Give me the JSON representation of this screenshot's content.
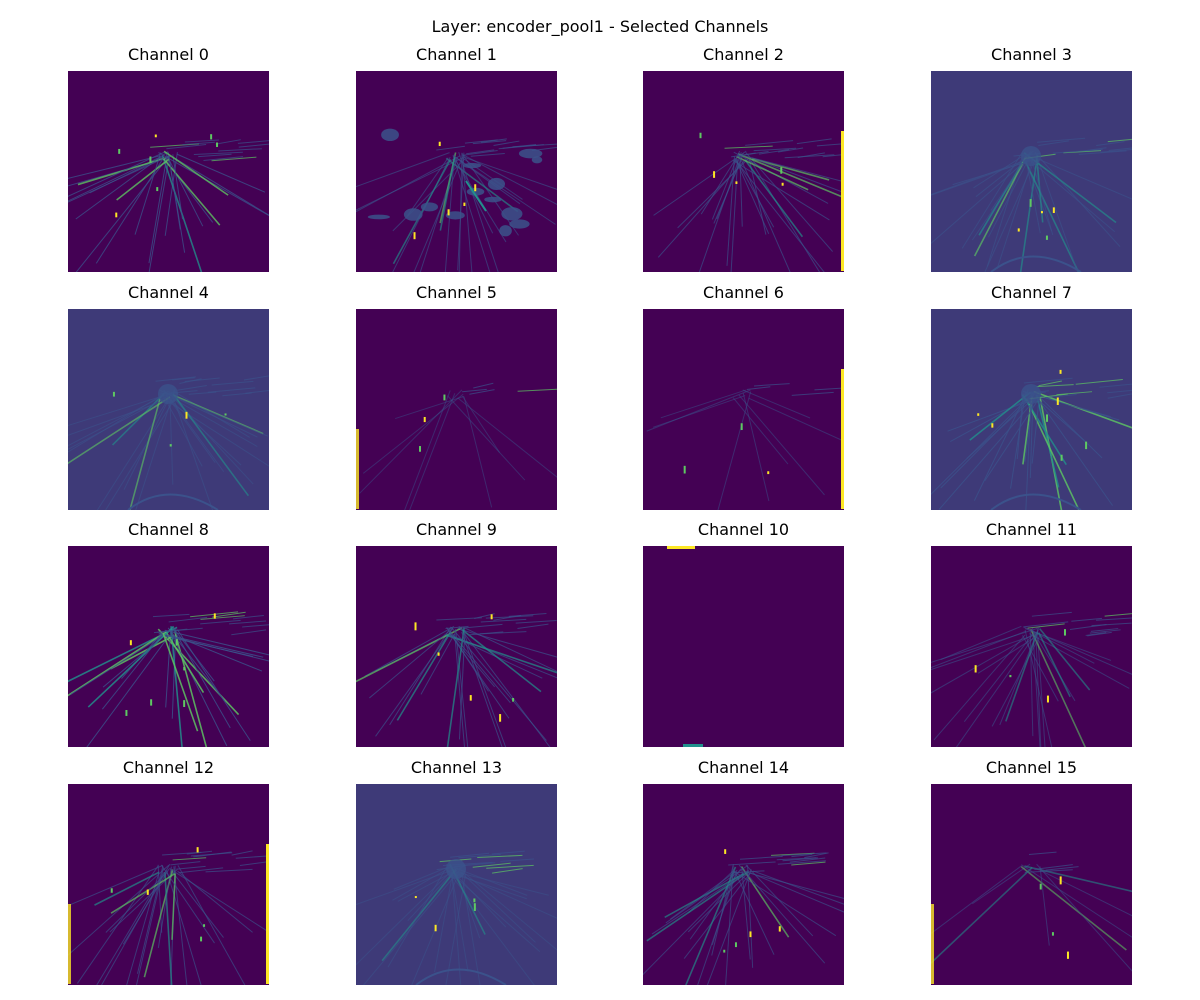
{
  "figure": {
    "suptitle": "Layer: encoder_pool1 - Selected Channels",
    "colormap": "viridis",
    "colors": {
      "background": "#440154",
      "mid_dark": "#3b528b",
      "mid": "#21918c",
      "bright": "#5ec962",
      "peak": "#fde725"
    },
    "panels": [
      {
        "title": "Channel 0",
        "style": "streaks",
        "intensity": 0.75
      },
      {
        "title": "Channel 1",
        "style": "blobs",
        "intensity": 0.45
      },
      {
        "title": "Channel 2",
        "style": "streaks",
        "intensity": 0.55
      },
      {
        "title": "Channel 3",
        "style": "emboss",
        "intensity": 0.5
      },
      {
        "title": "Channel 4",
        "style": "emboss",
        "intensity": 0.4
      },
      {
        "title": "Channel 5",
        "style": "sparse",
        "intensity": 0.15
      },
      {
        "title": "Channel 6",
        "style": "sparse",
        "intensity": 0.2
      },
      {
        "title": "Channel 7",
        "style": "emboss",
        "intensity": 0.8
      },
      {
        "title": "Channel 8",
        "style": "streaks",
        "intensity": 0.85
      },
      {
        "title": "Channel 9",
        "style": "streaks",
        "intensity": 0.6
      },
      {
        "title": "Channel 10",
        "style": "empty",
        "intensity": 0.0
      },
      {
        "title": "Channel 11",
        "style": "streaks",
        "intensity": 0.35
      },
      {
        "title": "Channel 12",
        "style": "streaks",
        "intensity": 0.55
      },
      {
        "title": "Channel 13",
        "style": "emboss",
        "intensity": 0.35
      },
      {
        "title": "Channel 14",
        "style": "streaks",
        "intensity": 0.5
      },
      {
        "title": "Channel 15",
        "style": "sparse",
        "intensity": 0.3
      }
    ]
  }
}
